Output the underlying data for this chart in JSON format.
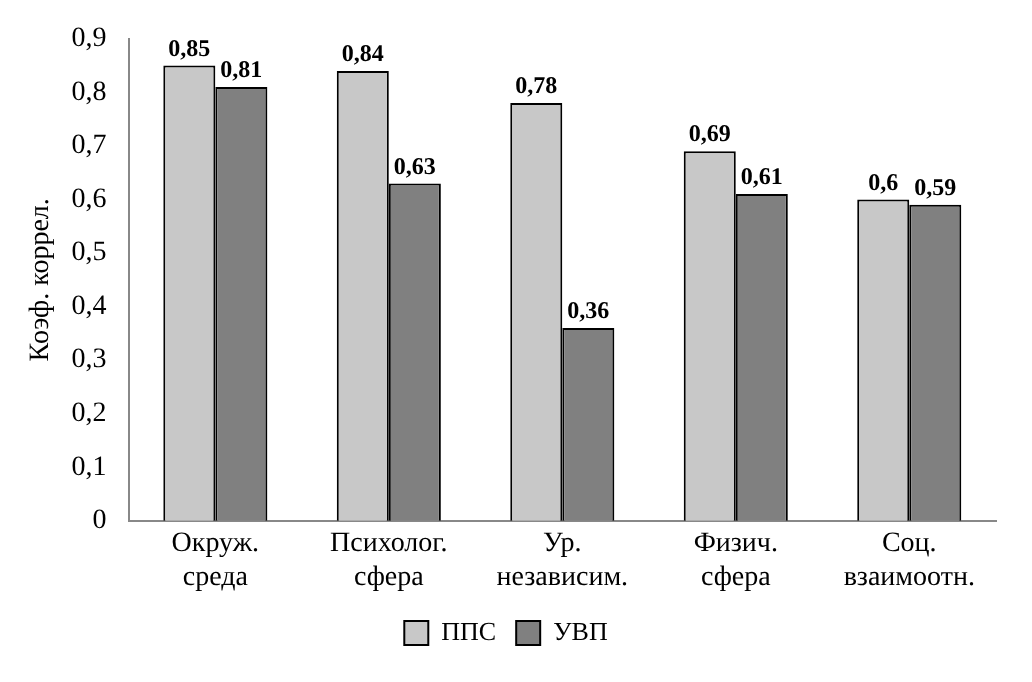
{
  "chart_data": {
    "type": "bar",
    "ylabel": "Коэф. коррел.",
    "categories": [
      "Окруж.\nсреда",
      "Психолог.\nсфера",
      "Ур.\nнезависим.",
      "Физич.\nсфера",
      "Соц.\nвзаимоотн."
    ],
    "series": [
      {
        "name": "ППС",
        "color": "#c8c8c8",
        "values": [
          0.85,
          0.84,
          0.78,
          0.69,
          0.6
        ],
        "value_labels": [
          "0,85",
          "0,84",
          "0,78",
          "0,69",
          "0,6"
        ]
      },
      {
        "name": "УВП",
        "color": "#808080",
        "values": [
          0.81,
          0.63,
          0.36,
          0.61,
          0.59
        ],
        "value_labels": [
          "0,81",
          "0,63",
          "0,36",
          "0,61",
          "0,59"
        ]
      }
    ],
    "ylim": [
      0,
      0.9
    ],
    "yticks": [
      {
        "value": 0,
        "label": "0"
      },
      {
        "value": 0.1,
        "label": "0,1"
      },
      {
        "value": 0.2,
        "label": "0,2"
      },
      {
        "value": 0.3,
        "label": "0,3"
      },
      {
        "value": 0.4,
        "label": "0,4"
      },
      {
        "value": 0.5,
        "label": "0,5"
      },
      {
        "value": 0.6,
        "label": "0,6"
      },
      {
        "value": 0.7,
        "label": "0,7"
      },
      {
        "value": 0.8,
        "label": "0,8"
      },
      {
        "value": 0.9,
        "label": "0,9"
      }
    ],
    "grid": false,
    "legend": "bottom"
  }
}
